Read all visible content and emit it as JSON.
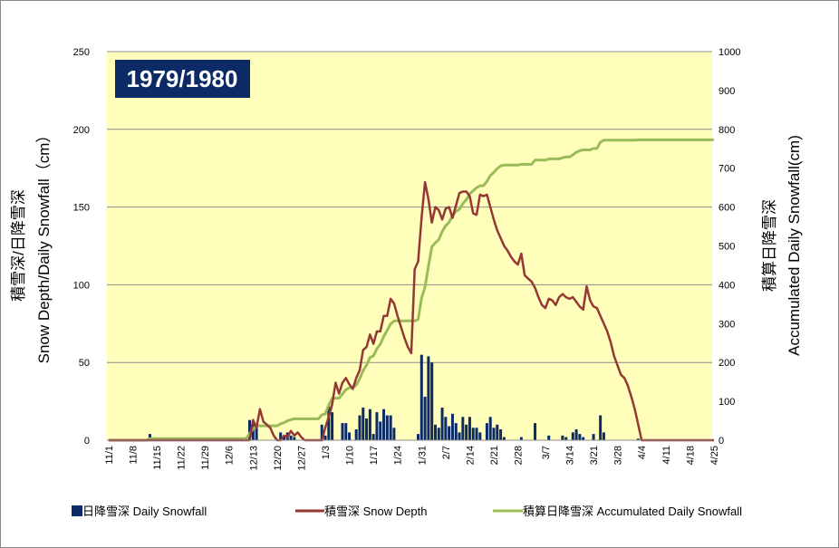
{
  "chart_data": {
    "type": "bar+line",
    "season_label": "1979/1980",
    "y_left_label": "Snow Depth/Daily Snowfall（cm）",
    "y_left_label_jp": "積雪深/日降雪深",
    "y_right_label": "Accumulated Daily Snowfall(cm)",
    "y_right_label_jp": "積算日降雪深",
    "y_left_lim": [
      0,
      250
    ],
    "y_left_ticks": [
      "0",
      "50",
      "100",
      "150",
      "200",
      "250"
    ],
    "y_right_lim": [
      0,
      1000
    ],
    "y_right_ticks": [
      "0",
      "100",
      "200",
      "300",
      "400",
      "500",
      "600",
      "700",
      "800",
      "900",
      "1000"
    ],
    "x_start_date": "11/1",
    "x_tick_labels": [
      "11/1",
      "11/8",
      "11/15",
      "11/22",
      "11/29",
      "12/6",
      "12/13",
      "12/20",
      "12/27",
      "1/3",
      "1/10",
      "1/17",
      "1/24",
      "1/31",
      "2/7",
      "2/14",
      "2/21",
      "2/28",
      "3/7",
      "3/14",
      "3/21",
      "3/28",
      "4/4",
      "4/11",
      "4/18",
      "4/25"
    ],
    "grid": true,
    "colors": {
      "plot_bg": "#FFFFBB",
      "bar": "#0B2A66",
      "snow_depth": "#953735",
      "accumulated": "#9BBB59",
      "season_box": "#0B2A66",
      "grid": "#8C8C8C"
    },
    "legend": {
      "position": "bottom",
      "items": [
        {
          "label": "日降雪深 Daily Snowfall",
          "kind": "bar"
        },
        {
          "label": "積雪深 Snow Depth",
          "kind": "line-depth"
        },
        {
          "label": "積算日降雪深 Accumulated Daily Snowfall",
          "kind": "line-acc"
        }
      ]
    },
    "series": [
      {
        "name": "日降雪深 Daily Snowfall",
        "type": "bar",
        "axis": "left",
        "points": [
          [
            "11/13",
            4
          ],
          [
            "12/12",
            13
          ],
          [
            "12/13",
            12
          ],
          [
            "12/14",
            8
          ],
          [
            "12/21",
            5
          ],
          [
            "12/22",
            3
          ],
          [
            "12/23",
            5
          ],
          [
            "12/24",
            3
          ],
          [
            "12/25",
            2
          ],
          [
            "1/2",
            10
          ],
          [
            "1/3",
            3
          ],
          [
            "1/4",
            22
          ],
          [
            "1/5",
            18
          ],
          [
            "1/8",
            11
          ],
          [
            "1/9",
            11
          ],
          [
            "1/10",
            5
          ],
          [
            "1/12",
            7
          ],
          [
            "1/13",
            16
          ],
          [
            "1/14",
            21
          ],
          [
            "1/15",
            14
          ],
          [
            "1/16",
            20
          ],
          [
            "1/17",
            4
          ],
          [
            "1/18",
            18
          ],
          [
            "1/19",
            12
          ],
          [
            "1/20",
            20
          ],
          [
            "1/21",
            16
          ],
          [
            "1/22",
            16
          ],
          [
            "1/23",
            8
          ],
          [
            "1/30",
            4
          ],
          [
            "1/31",
            55
          ],
          [
            "2/1",
            28
          ],
          [
            "2/2",
            54
          ],
          [
            "2/3",
            50
          ],
          [
            "2/4",
            10
          ],
          [
            "2/5",
            8
          ],
          [
            "2/6",
            21
          ],
          [
            "2/7",
            15
          ],
          [
            "2/8",
            9
          ],
          [
            "2/9",
            17
          ],
          [
            "2/10",
            11
          ],
          [
            "2/11",
            5
          ],
          [
            "2/12",
            15
          ],
          [
            "2/13",
            10
          ],
          [
            "2/14",
            15
          ],
          [
            "2/15",
            8
          ],
          [
            "2/16",
            8
          ],
          [
            "2/17",
            5
          ],
          [
            "2/19",
            11
          ],
          [
            "2/20",
            15
          ],
          [
            "2/21",
            8
          ],
          [
            "2/22",
            10
          ],
          [
            "2/23",
            7
          ],
          [
            "2/24",
            2
          ],
          [
            "2/29",
            2
          ],
          [
            "3/4",
            11
          ],
          [
            "3/8",
            3
          ],
          [
            "3/12",
            3
          ],
          [
            "3/13",
            2
          ],
          [
            "3/15",
            5
          ],
          [
            "3/16",
            7
          ],
          [
            "3/17",
            4
          ],
          [
            "3/18",
            2
          ],
          [
            "3/21",
            4
          ],
          [
            "3/23",
            16
          ],
          [
            "3/24",
            5
          ],
          [
            "4/3",
            1
          ]
        ]
      },
      {
        "name": "積雪深 Snow Depth",
        "type": "line",
        "axis": "left",
        "points": [
          [
            "11/1",
            0
          ],
          [
            "12/12",
            0
          ],
          [
            "12/13",
            13
          ],
          [
            "12/14",
            8
          ],
          [
            "12/15",
            20
          ],
          [
            "12/16",
            12
          ],
          [
            "12/17",
            10
          ],
          [
            "12/18",
            8
          ],
          [
            "12/19",
            3
          ],
          [
            "12/20",
            0
          ],
          [
            "12/21",
            0
          ],
          [
            "12/22",
            3
          ],
          [
            "12/23",
            2
          ],
          [
            "12/24",
            6
          ],
          [
            "12/25",
            3
          ],
          [
            "12/26",
            5
          ],
          [
            "12/27",
            2
          ],
          [
            "12/28",
            0
          ],
          [
            "1/2",
            0
          ],
          [
            "1/3",
            8
          ],
          [
            "1/4",
            15
          ],
          [
            "1/5",
            23
          ],
          [
            "1/6",
            37
          ],
          [
            "1/7",
            30
          ],
          [
            "1/8",
            37
          ],
          [
            "1/9",
            40
          ],
          [
            "1/10",
            36
          ],
          [
            "1/11",
            33
          ],
          [
            "1/12",
            40
          ],
          [
            "1/13",
            45
          ],
          [
            "1/14",
            58
          ],
          [
            "1/15",
            60
          ],
          [
            "1/16",
            68
          ],
          [
            "1/17",
            62
          ],
          [
            "1/18",
            70
          ],
          [
            "1/19",
            70
          ],
          [
            "1/20",
            80
          ],
          [
            "1/21",
            80
          ],
          [
            "1/22",
            91
          ],
          [
            "1/23",
            88
          ],
          [
            "1/24",
            80
          ],
          [
            "1/25",
            73
          ],
          [
            "1/26",
            66
          ],
          [
            "1/27",
            60
          ],
          [
            "1/28",
            56
          ],
          [
            "1/29",
            110
          ],
          [
            "1/30",
            115
          ],
          [
            "1/31",
            143
          ],
          [
            "2/1",
            166
          ],
          [
            "2/2",
            155
          ],
          [
            "2/3",
            140
          ],
          [
            "2/4",
            150
          ],
          [
            "2/5",
            148
          ],
          [
            "2/6",
            142
          ],
          [
            "2/7",
            149
          ],
          [
            "2/8",
            150
          ],
          [
            "2/9",
            143
          ],
          [
            "2/10",
            151
          ],
          [
            "2/11",
            159
          ],
          [
            "2/12",
            160
          ],
          [
            "2/13",
            160
          ],
          [
            "2/14",
            157
          ],
          [
            "2/15",
            146
          ],
          [
            "2/16",
            145
          ],
          [
            "2/17",
            158
          ],
          [
            "2/18",
            157
          ],
          [
            "2/19",
            158
          ],
          [
            "2/20",
            150
          ],
          [
            "2/21",
            142
          ],
          [
            "2/22",
            135
          ],
          [
            "2/23",
            130
          ],
          [
            "2/24",
            125
          ],
          [
            "2/25",
            122
          ],
          [
            "2/26",
            118
          ],
          [
            "2/27",
            115
          ],
          [
            "2/28",
            113
          ],
          [
            "2/29",
            120
          ],
          [
            "3/1",
            106
          ],
          [
            "3/2",
            104
          ],
          [
            "3/3",
            102
          ],
          [
            "3/4",
            98
          ],
          [
            "3/5",
            92
          ],
          [
            "3/6",
            87
          ],
          [
            "3/7",
            85
          ],
          [
            "3/8",
            91
          ],
          [
            "3/9",
            90
          ],
          [
            "3/10",
            87
          ],
          [
            "3/11",
            92
          ],
          [
            "3/12",
            94
          ],
          [
            "3/13",
            92
          ],
          [
            "3/14",
            91
          ],
          [
            "3/15",
            92
          ],
          [
            "3/16",
            89
          ],
          [
            "3/17",
            86
          ],
          [
            "3/18",
            84
          ],
          [
            "3/19",
            99
          ],
          [
            "3/20",
            90
          ],
          [
            "3/21",
            86
          ],
          [
            "3/22",
            85
          ],
          [
            "3/23",
            80
          ],
          [
            "3/24",
            75
          ],
          [
            "3/25",
            70
          ],
          [
            "3/26",
            63
          ],
          [
            "3/27",
            54
          ],
          [
            "3/28",
            48
          ],
          [
            "3/29",
            42
          ],
          [
            "3/30",
            40
          ],
          [
            "3/31",
            35
          ],
          [
            "4/1",
            28
          ],
          [
            "4/2",
            20
          ],
          [
            "4/3",
            10
          ],
          [
            "4/4",
            0
          ],
          [
            "4/25",
            0
          ]
        ]
      },
      {
        "name": "積算日降雪深 Accumulated Daily Snowfall",
        "type": "line",
        "axis": "right",
        "points": [
          [
            "11/1",
            0
          ],
          [
            "11/12",
            0
          ],
          [
            "11/13",
            4
          ],
          [
            "12/11",
            4
          ],
          [
            "12/12",
            17
          ],
          [
            "12/13",
            29
          ],
          [
            "12/14",
            37
          ],
          [
            "12/20",
            37
          ],
          [
            "12/21",
            42
          ],
          [
            "12/22",
            45
          ],
          [
            "12/23",
            50
          ],
          [
            "12/24",
            53
          ],
          [
            "12/25",
            55
          ],
          [
            "1/1",
            55
          ],
          [
            "1/2",
            65
          ],
          [
            "1/3",
            68
          ],
          [
            "1/4",
            90
          ],
          [
            "1/5",
            108
          ],
          [
            "1/7",
            108
          ],
          [
            "1/8",
            119
          ],
          [
            "1/9",
            130
          ],
          [
            "1/10",
            135
          ],
          [
            "1/11",
            135
          ],
          [
            "1/12",
            142
          ],
          [
            "1/13",
            158
          ],
          [
            "1/14",
            179
          ],
          [
            "1/15",
            193
          ],
          [
            "1/16",
            213
          ],
          [
            "1/17",
            217
          ],
          [
            "1/18",
            235
          ],
          [
            "1/19",
            247
          ],
          [
            "1/20",
            267
          ],
          [
            "1/21",
            283
          ],
          [
            "1/22",
            299
          ],
          [
            "1/23",
            307
          ],
          [
            "1/29",
            307
          ],
          [
            "1/30",
            311
          ],
          [
            "1/31",
            366
          ],
          [
            "2/1",
            394
          ],
          [
            "2/2",
            448
          ],
          [
            "2/3",
            498
          ],
          [
            "2/4",
            508
          ],
          [
            "2/5",
            516
          ],
          [
            "2/6",
            537
          ],
          [
            "2/7",
            552
          ],
          [
            "2/8",
            561
          ],
          [
            "2/9",
            578
          ],
          [
            "2/10",
            589
          ],
          [
            "2/11",
            594
          ],
          [
            "2/12",
            609
          ],
          [
            "2/13",
            619
          ],
          [
            "2/14",
            634
          ],
          [
            "2/15",
            642
          ],
          [
            "2/16",
            650
          ],
          [
            "2/17",
            655
          ],
          [
            "2/18",
            655
          ],
          [
            "2/19",
            666
          ],
          [
            "2/20",
            681
          ],
          [
            "2/21",
            689
          ],
          [
            "2/22",
            699
          ],
          [
            "2/23",
            706
          ],
          [
            "2/24",
            708
          ],
          [
            "2/28",
            708
          ],
          [
            "2/29",
            710
          ],
          [
            "3/3",
            710
          ],
          [
            "3/4",
            721
          ],
          [
            "3/7",
            721
          ],
          [
            "3/8",
            724
          ],
          [
            "3/11",
            724
          ],
          [
            "3/12",
            727
          ],
          [
            "3/13",
            729
          ],
          [
            "3/14",
            729
          ],
          [
            "3/15",
            734
          ],
          [
            "3/16",
            741
          ],
          [
            "3/17",
            745
          ],
          [
            "3/18",
            747
          ],
          [
            "3/20",
            747
          ],
          [
            "3/21",
            751
          ],
          [
            "3/22",
            751
          ],
          [
            "3/23",
            767
          ],
          [
            "3/24",
            772
          ],
          [
            "4/2",
            772
          ],
          [
            "4/3",
            773
          ],
          [
            "4/25",
            773
          ]
        ]
      }
    ]
  }
}
